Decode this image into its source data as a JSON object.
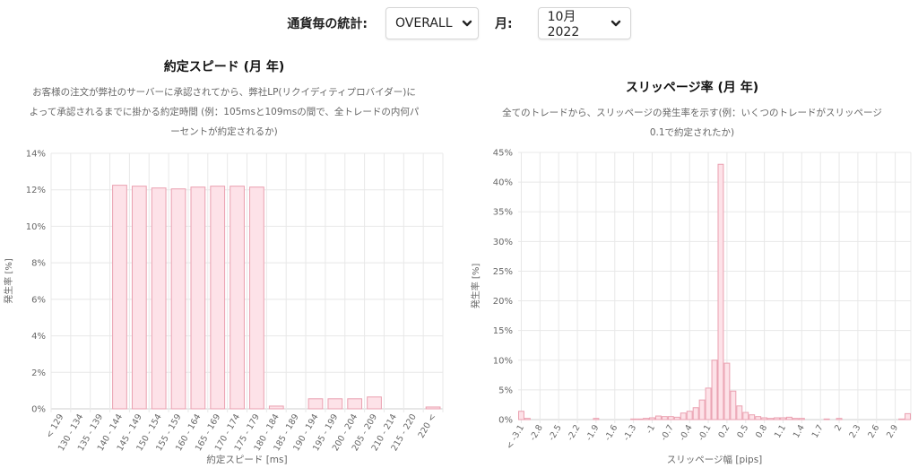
{
  "header": {
    "stats_label": "通貨毎の統計:",
    "currency_value": "OVERALL",
    "month_label": "月:",
    "month_value": "10月 2022"
  },
  "colors": {
    "bar_fill": "#fde2e8",
    "bar_stroke": "#eaa0b0",
    "grid": "#e8e8e8",
    "axis_text": "#666666"
  },
  "chart_data": [
    {
      "type": "bar",
      "title": "約定スピード (月 年)",
      "description_lines": [
        "お客様の注文が弊社のサーバーに承認されてから、弊社LP(リクイディティプロバイダー)に",
        "よって承認されるまでに掛かる約定時間 (例：105msと109msの間で、全トレードの内何パ",
        "ーセントが約定されるか)"
      ],
      "xlabel": "約定スピード [ms]",
      "ylabel": "発生率 [%]",
      "ylim": [
        0,
        14
      ],
      "yticks": [
        "0%",
        "2%",
        "4%",
        "6%",
        "8%",
        "10%",
        "12%",
        "14%"
      ],
      "grid": true,
      "categories": [
        "< 129",
        "130 - 134",
        "135 - 139",
        "140 - 144",
        "145 - 149",
        "150 - 154",
        "155 - 159",
        "160 - 164",
        "165 - 169",
        "170 - 174",
        "175 - 179",
        "180 - 184",
        "185 - 189",
        "190 - 194",
        "195 - 199",
        "200 - 204",
        "205 - 209",
        "210 - 214",
        "215 - 220",
        "220 <"
      ],
      "values": [
        0,
        0,
        0,
        12.25,
        12.2,
        12.1,
        12.05,
        12.15,
        12.2,
        12.2,
        12.15,
        0.15,
        0,
        0.55,
        0.55,
        0.55,
        0.65,
        0,
        0,
        0.1
      ]
    },
    {
      "type": "bar",
      "title": "スリッページ率 (月 年)",
      "description_lines": [
        "全てのトレードから、スリッページの発生率を示す(例：いくつのトレードがスリッページ",
        "0.1で約定されたか)"
      ],
      "xlabel": "スリッページ幅 [pips]",
      "ylabel": "発生率 [%]",
      "ylim": [
        0,
        45
      ],
      "yticks": [
        "0%",
        "5%",
        "10%",
        "15%",
        "20%",
        "25%",
        "30%",
        "35%",
        "40%",
        "45%"
      ],
      "grid": true,
      "xtick_labels": [
        "< -3.1",
        "-2.8",
        "-2.5",
        "-2.2",
        "-1.9",
        "-1.6",
        "-1.3",
        "-1",
        "-0.7",
        "-0.4",
        "-0.1",
        "0.2",
        "0.5",
        "0.8",
        "1.1",
        "1.4",
        "1.7",
        "2",
        "2.3",
        "2.6",
        "2.9"
      ],
      "x": [
        -3.1,
        -3.0,
        -2.9,
        -2.8,
        -2.7,
        -2.6,
        -2.5,
        -2.4,
        -2.3,
        -2.2,
        -2.1,
        -2.0,
        -1.9,
        -1.8,
        -1.7,
        -1.6,
        -1.5,
        -1.4,
        -1.3,
        -1.2,
        -1.1,
        -1.0,
        -0.9,
        -0.8,
        -0.7,
        -0.6,
        -0.5,
        -0.4,
        -0.3,
        -0.2,
        -0.1,
        0.0,
        0.1,
        0.2,
        0.3,
        0.4,
        0.5,
        0.6,
        0.7,
        0.8,
        0.9,
        1.0,
        1.1,
        1.2,
        1.3,
        1.4,
        1.5,
        1.6,
        1.7,
        1.8,
        1.9,
        2.0,
        2.1,
        2.2,
        2.3,
        2.4,
        2.5,
        2.6,
        2.7,
        2.8,
        2.9,
        3.0,
        3.1
      ],
      "values": [
        1.4,
        0.2,
        0,
        0,
        0,
        0,
        0,
        0,
        0,
        0,
        0,
        0,
        0.2,
        0,
        0,
        0,
        0,
        0,
        0.1,
        0.1,
        0.2,
        0.3,
        0.6,
        0.5,
        0.5,
        0.4,
        1.1,
        1.4,
        2.0,
        3.3,
        5.3,
        10.0,
        43.0,
        9.5,
        4.8,
        2.3,
        1.2,
        0.8,
        0.5,
        0.3,
        0.2,
        0.3,
        0.3,
        0.4,
        0.2,
        0.2,
        0,
        0,
        0,
        0.1,
        0,
        0.2,
        0,
        0,
        0,
        0,
        0,
        0,
        0,
        0,
        0,
        0.1,
        1.0
      ]
    }
  ]
}
